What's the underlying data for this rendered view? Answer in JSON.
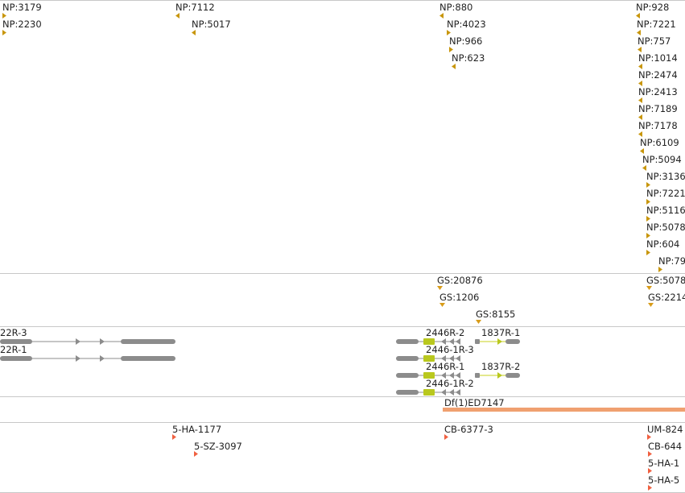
{
  "colors": {
    "np_marker": "#c8960c",
    "gs_marker": "#d89c1a",
    "gene_gray": "#8c8c8c",
    "gene_yellow": "#b9c81e",
    "gene_yellow_line": "#c8d21e",
    "deletion_bar": "#f0a070",
    "insertion_marker": "#f06040",
    "track_divider": "#c8c8c8",
    "text": "#222222"
  },
  "tracks": {
    "np_track": {
      "markers": [
        {
          "label": "NP:3179",
          "dir": "right"
        },
        {
          "label": "NP:2230",
          "dir": "right"
        },
        {
          "label": "NP:7112",
          "dir": "left"
        },
        {
          "label": "NP:5017",
          "dir": "left"
        },
        {
          "label": "NP:880",
          "dir": "left"
        },
        {
          "label": "NP:4023",
          "dir": "right"
        },
        {
          "label": "NP:966",
          "dir": "right"
        },
        {
          "label": "NP:623",
          "dir": "left"
        },
        {
          "label": "NP:928",
          "dir": "left"
        },
        {
          "label": "NP:7221",
          "dir": "left"
        },
        {
          "label": "NP:757",
          "dir": "left"
        },
        {
          "label": "NP:1014",
          "dir": "left"
        },
        {
          "label": "NP:2474",
          "dir": "left"
        },
        {
          "label": "NP:2413",
          "dir": "left"
        },
        {
          "label": "NP:7189",
          "dir": "left"
        },
        {
          "label": "NP:7178",
          "dir": "left"
        },
        {
          "label": "NP:6109",
          "dir": "left"
        },
        {
          "label": "NP:5094",
          "dir": "left"
        },
        {
          "label": "NP:3136",
          "dir": "right"
        },
        {
          "label": "NP:7221",
          "dir": "right"
        },
        {
          "label": "NP:5116",
          "dir": "right"
        },
        {
          "label": "NP:5078",
          "dir": "right"
        },
        {
          "label": "NP:604",
          "dir": "right"
        },
        {
          "label": "NP:79",
          "dir": "right"
        }
      ]
    },
    "gs_track": {
      "markers": [
        {
          "label": "GS:20876",
          "dir": "left"
        },
        {
          "label": "GS:1206",
          "dir": "left"
        },
        {
          "label": "GS:8155",
          "dir": "left"
        },
        {
          "label": "GS:5078",
          "dir": "left"
        },
        {
          "label": "GS:2214",
          "dir": "left"
        }
      ]
    },
    "gene_track": {
      "transcripts": [
        {
          "label": "22R-3",
          "color": "gray"
        },
        {
          "label": "22R-1",
          "color": "gray"
        },
        {
          "label": "2446R-2",
          "color": "mixed"
        },
        {
          "label": "1837R-1",
          "color": "yellow"
        },
        {
          "label": "2446-1R-3",
          "color": "mixed"
        },
        {
          "label": "2446R-1",
          "color": "mixed"
        },
        {
          "label": "1837R-2",
          "color": "yellow"
        },
        {
          "label": "2446-1R-2",
          "color": "mixed"
        }
      ]
    },
    "deletion_track": {
      "items": [
        {
          "label": "Df(1)ED7147"
        }
      ]
    },
    "insertion_track": {
      "markers": [
        {
          "label": "5-HA-1177",
          "dir": "right"
        },
        {
          "label": "5-SZ-3097",
          "dir": "right"
        },
        {
          "label": "CB-6377-3",
          "dir": "right"
        },
        {
          "label": "UM-824",
          "dir": "right"
        },
        {
          "label": "CB-644",
          "dir": "right"
        },
        {
          "label": "5-HA-1",
          "dir": "right"
        },
        {
          "label": "5-HA-5",
          "dir": "right"
        }
      ]
    }
  }
}
